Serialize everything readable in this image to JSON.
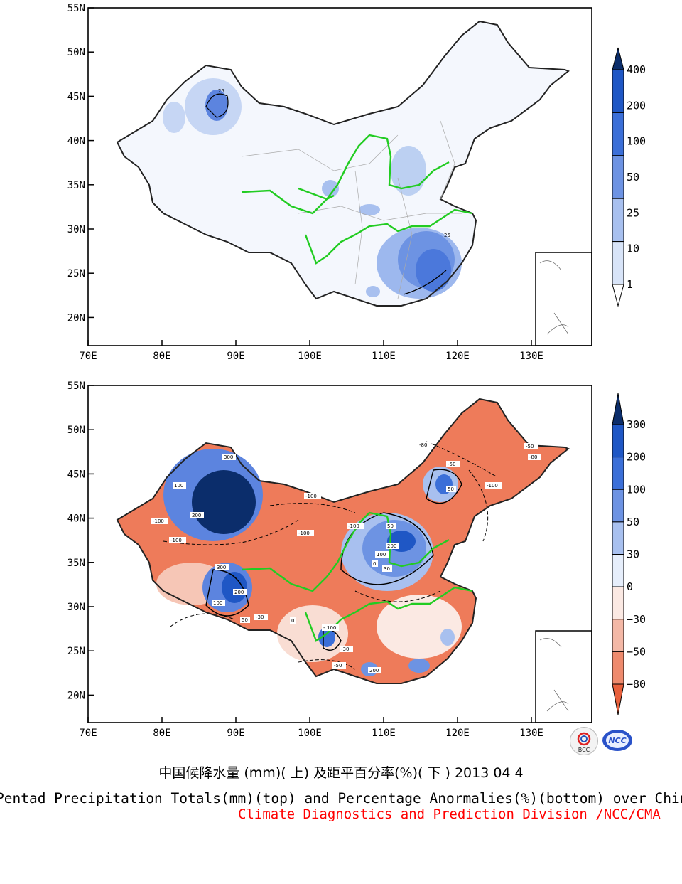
{
  "panels": [
    {
      "id": "top",
      "lat_ticks": [
        "55N",
        "50N",
        "45N",
        "40N",
        "35N",
        "30N",
        "25N",
        "20N"
      ],
      "lon_ticks": [
        "70E",
        "80E",
        "90E",
        "100E",
        "110E",
        "120E",
        "130E"
      ],
      "colorbar": {
        "labels": [
          "400",
          "200",
          "100",
          "50",
          "25",
          "10",
          "1"
        ],
        "colors": [
          "#0b2d6b",
          "#1f57c5",
          "#3b6fd8",
          "#6d93e3",
          "#a8c0ef",
          "#d8e4f8",
          "#ffffff"
        ]
      },
      "contour_labels": [
        "25",
        "25"
      ]
    },
    {
      "id": "bottom",
      "lat_ticks": [
        "55N",
        "50N",
        "45N",
        "40N",
        "35N",
        "30N",
        "25N",
        "20N"
      ],
      "lon_ticks": [
        "70E",
        "80E",
        "90E",
        "100E",
        "110E",
        "120E",
        "130E"
      ],
      "colorbar": {
        "labels": [
          "300",
          "200",
          "100",
          "50",
          "30",
          "0",
          "−30",
          "−50",
          "−80"
        ],
        "colors": [
          "#0b2d6b",
          "#1f57c5",
          "#3b6fd8",
          "#6d93e3",
          "#a8c0ef",
          "#e6eefb",
          "#fbe9e3",
          "#f4b8a6",
          "#ee8a6d",
          "#e8603c"
        ]
      },
      "contour_labels": [
        "-100",
        "-100",
        "-100",
        "-100",
        "-100",
        "-100",
        "-80",
        "-80",
        "-50",
        "-50",
        "-50",
        "-30",
        "-30",
        "30",
        "50",
        "100",
        "200",
        "300",
        "200",
        "100",
        "50",
        "0",
        "300",
        "200",
        "100",
        "50",
        "0",
        "-80",
        "100",
        "200"
      ]
    }
  ],
  "captions": {
    "chinese": "中国候降水量 (mm)( 上) 及距平百分率(%)( 下 ) 2013 04 4",
    "english": "Pentad Precipitation Totals(mm)(top) and Percentage Anormalies(%)(bottom) over China",
    "source": "Climate Diagnostics and Prediction Division /NCC/CMA"
  },
  "logos": [
    {
      "name": "bcc-logo",
      "text": "BCC"
    },
    {
      "name": "ncc-logo",
      "text": "NCC"
    }
  ]
}
